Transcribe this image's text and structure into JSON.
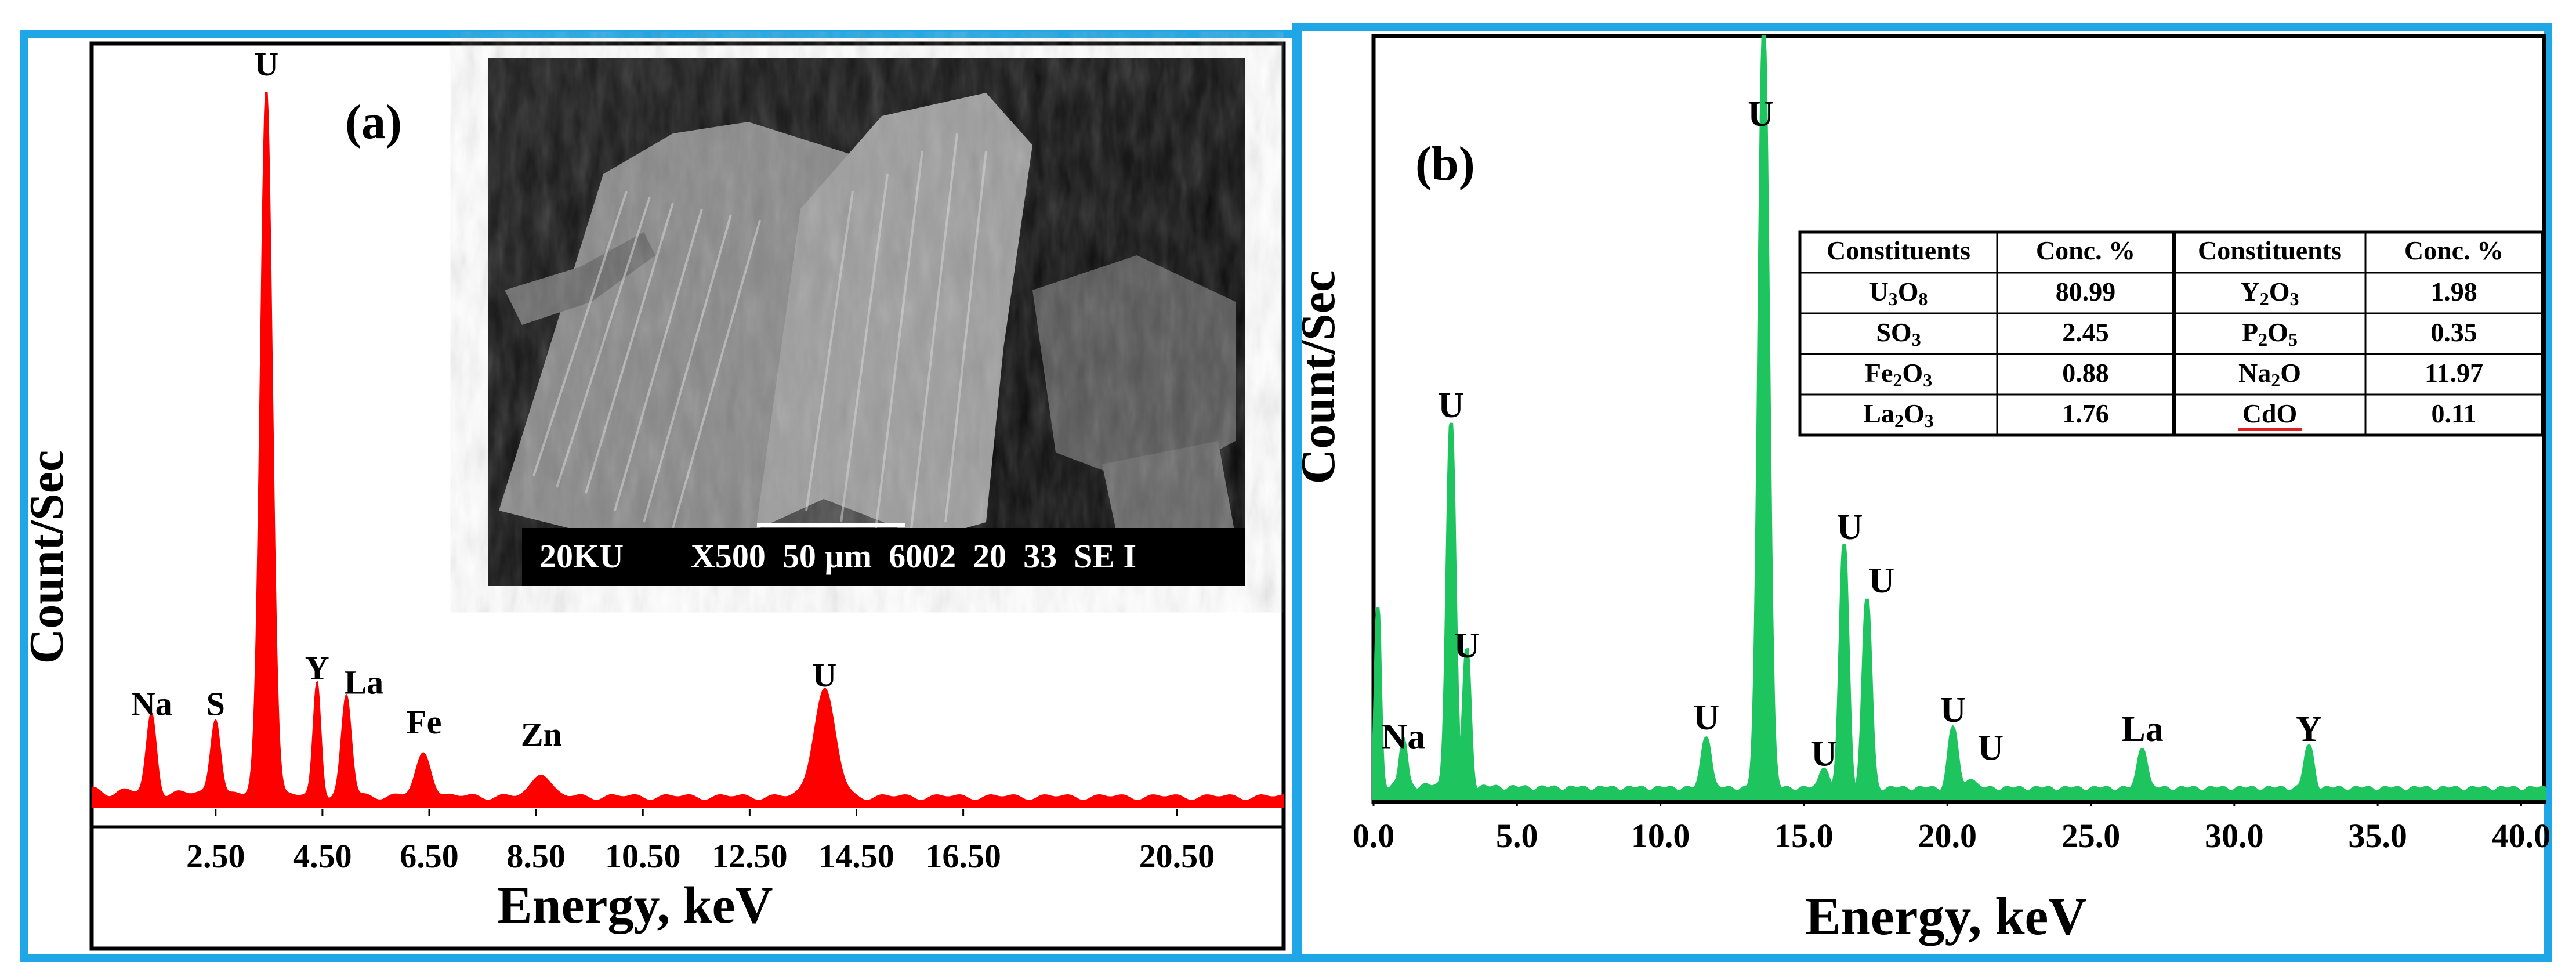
{
  "chart_data": [
    {
      "panel": "a",
      "type": "area",
      "panel_label": "(a)",
      "xlabel": "Energy, keV",
      "ylabel": "Count/Sec",
      "xlim": [
        0.2,
        22.5
      ],
      "xticks": [
        "2.50",
        "4.50",
        "6.50",
        "8.50",
        "10.50",
        "12.50",
        "14.50",
        "16.50",
        "20.50"
      ],
      "xtick_values": [
        2.5,
        4.5,
        6.5,
        8.5,
        10.5,
        12.5,
        14.5,
        16.5,
        20.5
      ],
      "color": "#ff0000",
      "baseline_level": 0.02,
      "peaks": [
        {
          "label": "Na",
          "x": 1.3,
          "height": 0.11,
          "width": 0.09
        },
        {
          "label": "S",
          "x": 2.5,
          "height": 0.11,
          "width": 0.09
        },
        {
          "label": "U",
          "x": 3.45,
          "height": 1.0,
          "width": 0.11
        },
        {
          "label": "Y",
          "x": 4.4,
          "height": 0.16,
          "width": 0.07
        },
        {
          "label": "La",
          "x": 4.95,
          "height": 0.14,
          "width": 0.09
        },
        {
          "label": "Fe",
          "x": 6.4,
          "height": 0.06,
          "width": 0.14
        },
        {
          "label": "Zn",
          "x": 8.6,
          "height": 0.035,
          "width": 0.16
        },
        {
          "label": "U",
          "x": 13.9,
          "height": 0.15,
          "width": 0.2
        }
      ],
      "inset": {
        "caption": "20KU        X500  50 µm  6002  20  33  SE I"
      }
    },
    {
      "panel": "b",
      "type": "area",
      "panel_label": "(b)",
      "xlabel": "Energy, keV",
      "ylabel": "Count/Sec",
      "xlim": [
        0.0,
        40.8
      ],
      "xticks": [
        "0.0",
        "5.0",
        "10.0",
        "15.0",
        "20.0",
        "25.0",
        "30.0",
        "35.0",
        "40.0"
      ],
      "xtick_values": [
        0,
        5,
        10,
        15,
        20,
        25,
        30,
        35,
        40
      ],
      "color": "#1ec55f",
      "baseline_level": 0.015,
      "peaks": [
        {
          "label": "",
          "x": 0.15,
          "height": 0.23,
          "width": 0.08
        },
        {
          "label": "Na",
          "x": 1.04,
          "height": 0.06,
          "width": 0.1
        },
        {
          "label": "U",
          "x": 2.7,
          "height": 0.48,
          "width": 0.13
        },
        {
          "label": "U",
          "x": 3.25,
          "height": 0.18,
          "width": 0.11
        },
        {
          "label": "U",
          "x": 11.6,
          "height": 0.07,
          "width": 0.14
        },
        {
          "label": "U",
          "x": 13.6,
          "height": 1.0,
          "width": 0.16
        },
        {
          "label": "U",
          "x": 15.7,
          "height": 0.03,
          "width": 0.13
        },
        {
          "label": "U",
          "x": 16.4,
          "height": 0.32,
          "width": 0.13
        },
        {
          "label": "U",
          "x": 17.2,
          "height": 0.25,
          "width": 0.13
        },
        {
          "label": "U",
          "x": 20.2,
          "height": 0.08,
          "width": 0.14
        },
        {
          "label": "U",
          "x": 20.8,
          "height": 0.015,
          "width": 0.14
        },
        {
          "label": "La",
          "x": 26.8,
          "height": 0.055,
          "width": 0.14
        },
        {
          "label": "Y",
          "x": 32.6,
          "height": 0.055,
          "width": 0.14
        }
      ],
      "table": {
        "headers": [
          "Constituents",
          "Conc. %",
          "Constituents",
          "Conc. %"
        ],
        "rows": [
          [
            {
              "base": "U",
              "sub": "3",
              "rest": "O",
              "sub2": "8"
            },
            "80.99",
            {
              "base": "Y",
              "sub": "2",
              "rest": "O",
              "sub2": "3"
            },
            "1.98"
          ],
          [
            {
              "base": "SO",
              "sub": "3",
              "rest": "",
              "sub2": ""
            },
            "2.45",
            {
              "base": "P",
              "sub": "2",
              "rest": "O",
              "sub2": "5"
            },
            "0.35"
          ],
          [
            {
              "base": "Fe",
              "sub": "2",
              "rest": "O",
              "sub2": "3"
            },
            "0.88",
            {
              "base": "Na",
              "sub": "2",
              "rest": "O",
              "sub2": ""
            },
            "11.97"
          ],
          [
            {
              "base": "La",
              "sub": "2",
              "rest": "O",
              "sub2": "3"
            },
            "1.76",
            {
              "base": "CdO",
              "sub": "",
              "rest": "",
              "sub2": ""
            },
            "0.11"
          ]
        ]
      }
    }
  ]
}
